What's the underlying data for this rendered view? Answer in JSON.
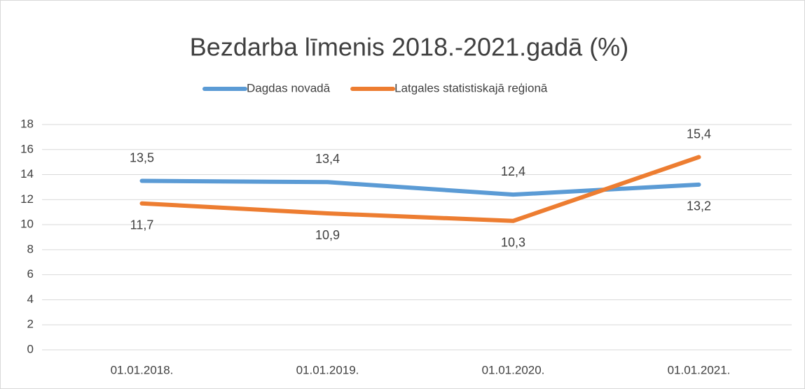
{
  "chart_data": {
    "type": "line",
    "title": "Bezdarba līmenis 2018.-2021.gadā (%)",
    "categories": [
      "01.01.2018.",
      "01.01.2019.",
      "01.01.2020.",
      "01.01.2021."
    ],
    "series": [
      {
        "name": "Dagdas novadā",
        "color": "#5b9bd5",
        "values": [
          13.5,
          13.4,
          12.4,
          13.2
        ],
        "value_labels": [
          "13,5",
          "13,4",
          "12,4",
          "13,2"
        ]
      },
      {
        "name": "Latgales statistiskajā reģionā",
        "color": "#ed7d31",
        "values": [
          11.7,
          10.9,
          10.3,
          15.4
        ],
        "value_labels": [
          "11,7",
          "10,9",
          "10,3",
          "15,4"
        ]
      }
    ],
    "ylim": [
      0,
      18
    ],
    "yticks": [
      0,
      2,
      4,
      6,
      8,
      10,
      12,
      14,
      16,
      18
    ],
    "grid": true,
    "legend": "top"
  }
}
